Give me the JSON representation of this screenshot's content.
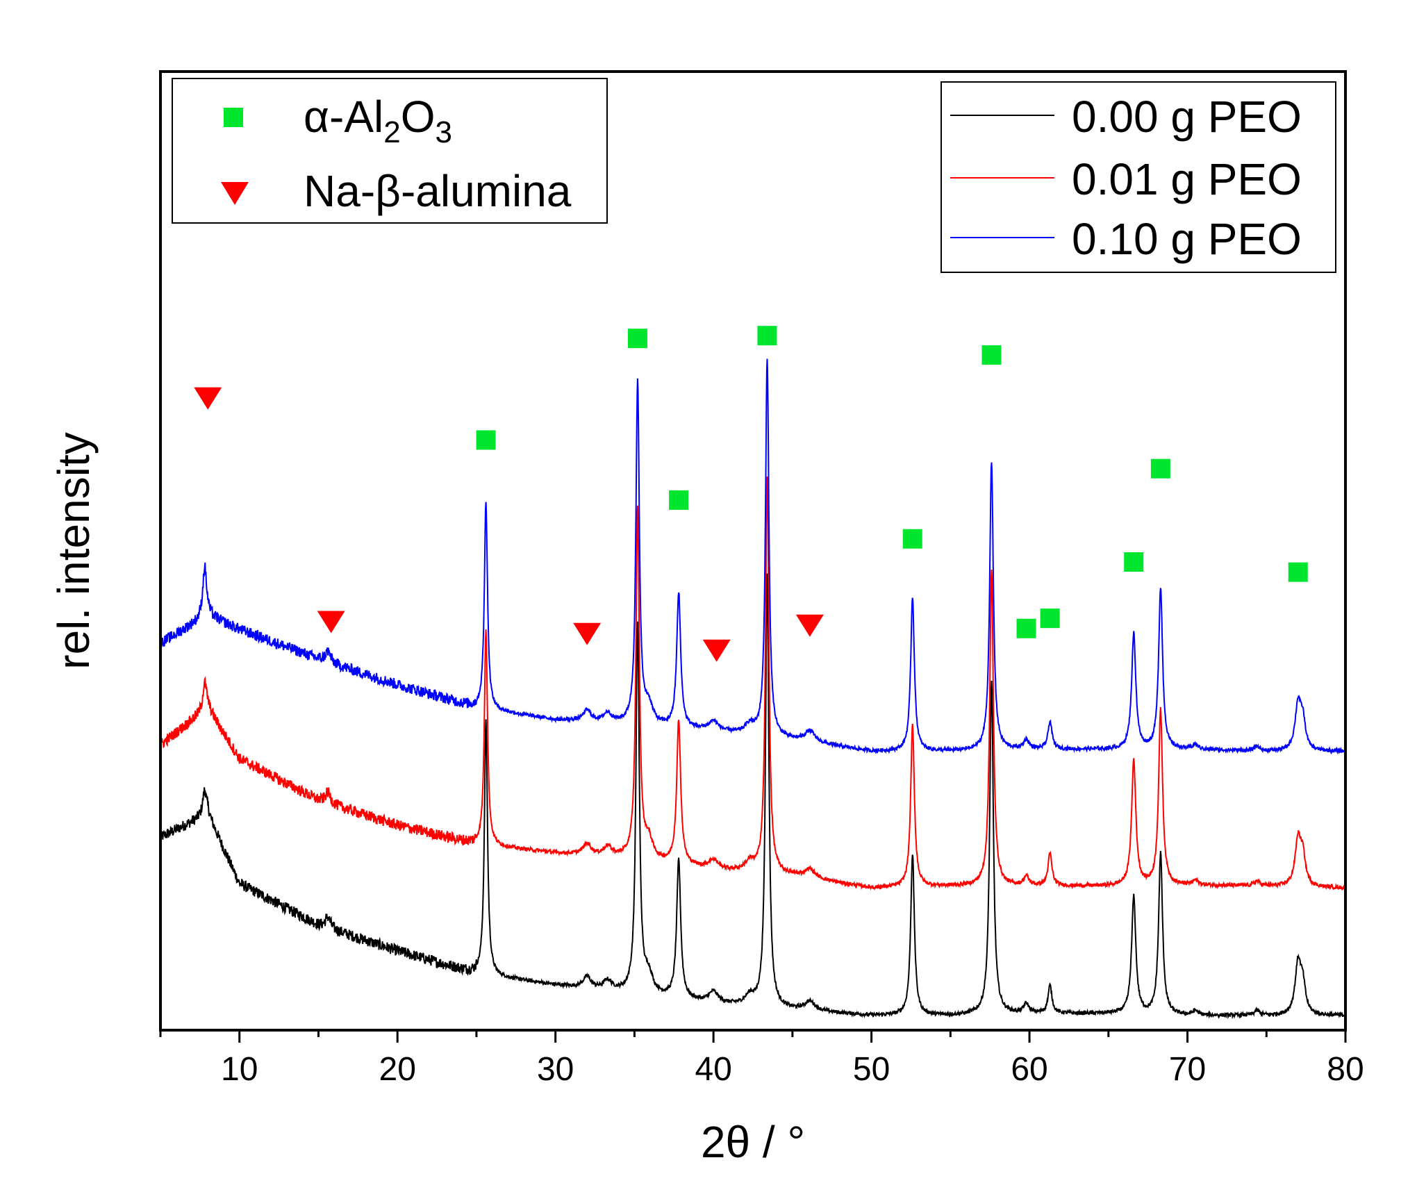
{
  "chart_data": {
    "type": "line",
    "title": "",
    "xlabel": "2θ / °",
    "ylabel": "rel. intensity",
    "xlim": [
      5,
      80
    ],
    "ylim": [
      0,
      1.05
    ],
    "x_ticks": [
      10,
      20,
      30,
      40,
      50,
      60,
      70,
      80
    ],
    "y_ticks_shown": false,
    "grid": false,
    "series": [
      {
        "name": "0.00 g PEO",
        "color": "#000000",
        "legend_label": "0.00 g PEO",
        "baseline": [
          [
            5,
            0.205
          ],
          [
            8,
            0.23
          ],
          [
            10,
            0.155
          ],
          [
            15,
            0.11
          ],
          [
            20,
            0.082
          ],
          [
            25,
            0.057
          ],
          [
            30,
            0.045
          ],
          [
            35,
            0.036
          ],
          [
            40,
            0.025
          ],
          [
            45,
            0.018
          ],
          [
            50,
            0.012
          ],
          [
            55,
            0.012
          ],
          [
            60,
            0.014
          ],
          [
            65,
            0.014
          ],
          [
            70,
            0.012
          ],
          [
            75,
            0.012
          ],
          [
            80,
            0.012
          ]
        ],
        "peaks": [
          [
            7.8,
            0.028,
            0.15
          ],
          [
            15.6,
            0.012,
            0.2
          ],
          [
            25.6,
            0.275,
            0.12
          ],
          [
            32.0,
            0.012,
            0.3
          ],
          [
            33.3,
            0.01,
            0.3
          ],
          [
            35.2,
            0.4,
            0.13
          ],
          [
            35.9,
            0.02,
            0.3
          ],
          [
            37.8,
            0.15,
            0.15
          ],
          [
            40.0,
            0.012,
            0.35
          ],
          [
            42.3,
            0.01,
            0.35
          ],
          [
            43.4,
            0.47,
            0.13
          ],
          [
            46.1,
            0.01,
            0.4
          ],
          [
            52.6,
            0.175,
            0.14
          ],
          [
            57.6,
            0.36,
            0.14
          ],
          [
            59.8,
            0.01,
            0.2
          ],
          [
            61.3,
            0.03,
            0.15
          ],
          [
            66.6,
            0.127,
            0.16
          ],
          [
            68.3,
            0.175,
            0.15
          ],
          [
            70.5,
            0.005,
            0.2
          ],
          [
            74.4,
            0.005,
            0.2
          ],
          [
            77.0,
            0.055,
            0.22
          ],
          [
            77.3,
            0.03,
            0.2
          ]
        ]
      },
      {
        "name": "0.01 g PEO",
        "color": "#ff0000",
        "legend_label": "0.01 g PEO",
        "baseline": [
          [
            5,
            0.305
          ],
          [
            8,
            0.345
          ],
          [
            10,
            0.29
          ],
          [
            15,
            0.245
          ],
          [
            20,
            0.218
          ],
          [
            25,
            0.197
          ],
          [
            30,
            0.188
          ],
          [
            35,
            0.182
          ],
          [
            40,
            0.17
          ],
          [
            45,
            0.163
          ],
          [
            50,
            0.15
          ],
          [
            55,
            0.152
          ],
          [
            60,
            0.152
          ],
          [
            65,
            0.152
          ],
          [
            70,
            0.153
          ],
          [
            75,
            0.152
          ],
          [
            80,
            0.15
          ]
        ],
        "peaks": [
          [
            7.8,
            0.03,
            0.15
          ],
          [
            15.6,
            0.012,
            0.2
          ],
          [
            25.6,
            0.235,
            0.12
          ],
          [
            32.0,
            0.012,
            0.3
          ],
          [
            33.3,
            0.01,
            0.3
          ],
          [
            35.2,
            0.38,
            0.13
          ],
          [
            35.9,
            0.02,
            0.3
          ],
          [
            37.8,
            0.155,
            0.15
          ],
          [
            40.0,
            0.01,
            0.35
          ],
          [
            42.3,
            0.01,
            0.35
          ],
          [
            43.4,
            0.43,
            0.13
          ],
          [
            46.1,
            0.01,
            0.4
          ],
          [
            52.6,
            0.175,
            0.14
          ],
          [
            57.6,
            0.342,
            0.14
          ],
          [
            59.8,
            0.01,
            0.2
          ],
          [
            61.3,
            0.035,
            0.15
          ],
          [
            66.6,
            0.136,
            0.16
          ],
          [
            68.3,
            0.19,
            0.15
          ],
          [
            70.5,
            0.005,
            0.2
          ],
          [
            74.4,
            0.005,
            0.2
          ],
          [
            77.0,
            0.05,
            0.22
          ],
          [
            77.3,
            0.03,
            0.2
          ]
        ]
      },
      {
        "name": "0.10 g PEO",
        "color": "#0000ff",
        "legend_label": "0.10 g PEO",
        "baseline": [
          [
            5,
            0.415
          ],
          [
            8,
            0.445
          ],
          [
            10,
            0.43
          ],
          [
            15,
            0.398
          ],
          [
            20,
            0.37
          ],
          [
            25,
            0.345
          ],
          [
            30,
            0.332
          ],
          [
            35,
            0.327
          ],
          [
            40,
            0.32
          ],
          [
            45,
            0.31
          ],
          [
            50,
            0.298
          ],
          [
            55,
            0.298
          ],
          [
            60,
            0.3
          ],
          [
            65,
            0.3
          ],
          [
            70,
            0.3
          ],
          [
            75,
            0.298
          ],
          [
            80,
            0.298
          ]
        ],
        "peaks": [
          [
            7.8,
            0.055,
            0.15
          ],
          [
            15.6,
            0.012,
            0.2
          ],
          [
            25.6,
            0.225,
            0.12
          ],
          [
            32.0,
            0.012,
            0.3
          ],
          [
            33.3,
            0.01,
            0.3
          ],
          [
            35.2,
            0.37,
            0.13
          ],
          [
            35.9,
            0.02,
            0.3
          ],
          [
            37.8,
            0.145,
            0.15
          ],
          [
            40.0,
            0.01,
            0.35
          ],
          [
            42.3,
            0.01,
            0.35
          ],
          [
            43.4,
            0.41,
            0.13
          ],
          [
            46.1,
            0.012,
            0.4
          ],
          [
            52.6,
            0.167,
            0.14
          ],
          [
            57.6,
            0.312,
            0.14
          ],
          [
            59.8,
            0.01,
            0.2
          ],
          [
            61.3,
            0.03,
            0.15
          ],
          [
            66.6,
            0.125,
            0.16
          ],
          [
            68.3,
            0.175,
            0.15
          ],
          [
            70.5,
            0.005,
            0.2
          ],
          [
            74.4,
            0.005,
            0.2
          ],
          [
            77.0,
            0.05,
            0.22
          ],
          [
            77.3,
            0.03,
            0.2
          ]
        ]
      }
    ],
    "markers": [
      {
        "phase": "α-Al2O3",
        "shape": "square",
        "color": "#00e62e",
        "points": [
          [
            25.6,
            0.635
          ],
          [
            35.2,
            0.745
          ],
          [
            37.8,
            0.57
          ],
          [
            43.4,
            0.748
          ],
          [
            52.6,
            0.528
          ],
          [
            57.6,
            0.727
          ],
          [
            59.8,
            0.431
          ],
          [
            61.3,
            0.442
          ],
          [
            66.6,
            0.503
          ],
          [
            68.3,
            0.604
          ],
          [
            77.0,
            0.492
          ]
        ]
      },
      {
        "phase": "Na-β-alumina",
        "shape": "triangle-down",
        "color": "#ff0000",
        "points": [
          [
            8.0,
            0.68
          ],
          [
            15.8,
            0.438
          ],
          [
            32.0,
            0.425
          ],
          [
            40.2,
            0.407
          ],
          [
            46.1,
            0.434
          ]
        ]
      }
    ],
    "legends": {
      "phase_legend": {
        "position": "top-left",
        "entries": [
          {
            "shape": "square",
            "color": "#00e62e",
            "label_main": "α-Al",
            "sub1": "2",
            "mid": "O",
            "sub2": "3"
          },
          {
            "shape": "triangle-down",
            "color": "#ff0000",
            "label": "Na-β-alumina"
          }
        ]
      },
      "series_legend": {
        "position": "top-right"
      }
    }
  }
}
